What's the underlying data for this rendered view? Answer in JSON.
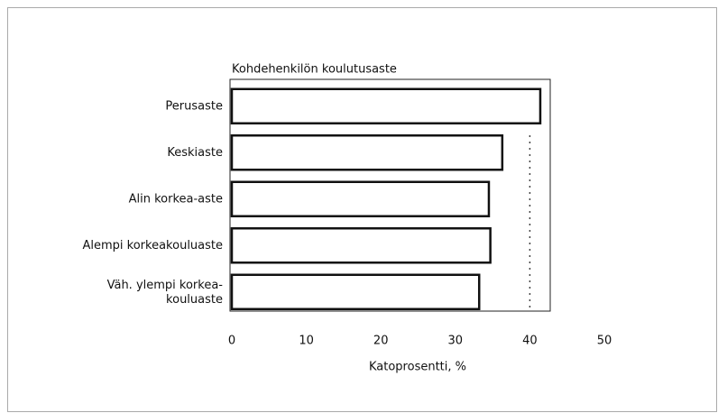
{
  "chart_data": {
    "type": "hbar",
    "title": "Kohdehenkilön koulutusaste",
    "categories": [
      "Perusaste",
      "Keskiaste",
      "Alin korkea-aste",
      "Alempi korkeakouluaste",
      "Väh. ylempi korkea-\nkouluaste"
    ],
    "values": [
      41.4,
      36.3,
      34.5,
      34.7,
      33.2
    ],
    "color": "#ffffff",
    "x_label": "Katoprosentti, %",
    "xlim": [
      0,
      50
    ],
    "xticks": [
      0,
      10,
      20,
      30,
      40,
      50
    ],
    "reference_line": 40
  }
}
